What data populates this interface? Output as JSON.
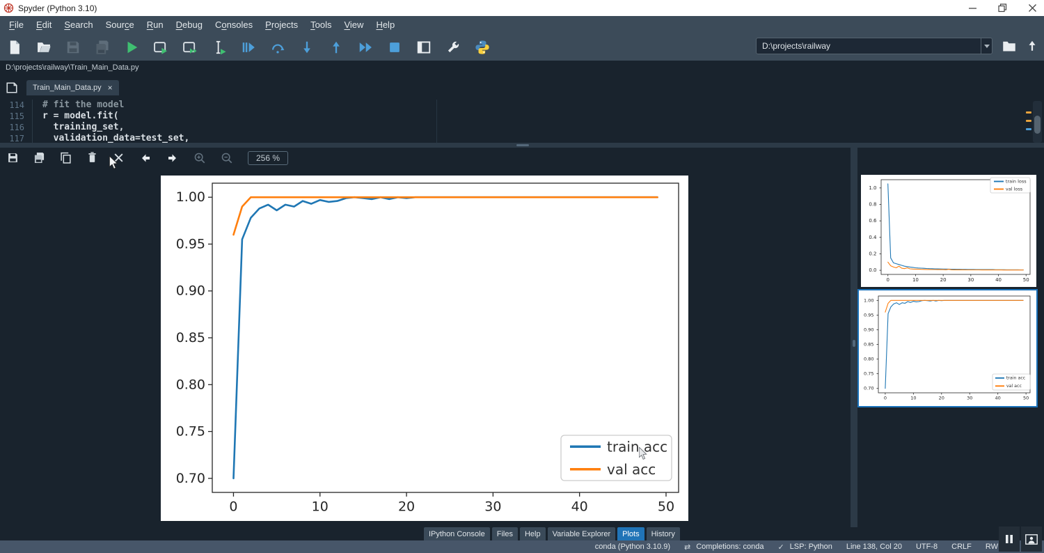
{
  "window": {
    "title": "Spyder (Python 3.10)"
  },
  "menubar": {
    "items": [
      {
        "label": "File",
        "u": 0
      },
      {
        "label": "Edit",
        "u": 0
      },
      {
        "label": "Search",
        "u": 0
      },
      {
        "label": "Source",
        "u": 4
      },
      {
        "label": "Run",
        "u": 0
      },
      {
        "label": "Debug",
        "u": 0
      },
      {
        "label": "Consoles",
        "u": 1
      },
      {
        "label": "Projects",
        "u": 0
      },
      {
        "label": "Tools",
        "u": 0
      },
      {
        "label": "View",
        "u": 0
      },
      {
        "label": "Help",
        "u": 0
      }
    ]
  },
  "toolbar": {
    "workdir": "D:\\projects\\railway"
  },
  "pathbar": {
    "path": "D:\\projects\\railway\\Train_Main_Data.py"
  },
  "editor": {
    "tab": {
      "label": "Train_Main_Data.py",
      "close": "×"
    },
    "lines": [
      {
        "num": "114",
        "code": "# fit the model"
      },
      {
        "num": "115",
        "code": "r = model.fit("
      },
      {
        "num": "116",
        "code": "  training_set,"
      },
      {
        "num": "117",
        "code": "  validation_data=test_set,"
      }
    ]
  },
  "plots_toolbar": {
    "zoom_level": "256 %"
  },
  "colors": {
    "accent": "#1a72bb",
    "train": "#1f77b4",
    "val": "#ff7f0e"
  },
  "chart_data": [
    {
      "type": "line",
      "title": "",
      "xlabel": "",
      "ylabel": "",
      "xlim": [
        -2.45,
        51.45
      ],
      "ylim": [
        0.685,
        1.015
      ],
      "xticks": [
        {
          "v": 0,
          "label": "0"
        },
        {
          "v": 10,
          "label": "10"
        },
        {
          "v": 20,
          "label": "20"
        },
        {
          "v": 30,
          "label": "30"
        },
        {
          "v": 40,
          "label": "40"
        },
        {
          "v": 50,
          "label": "50"
        }
      ],
      "yticks": [
        {
          "v": 0.7,
          "label": "0.70"
        },
        {
          "v": 0.75,
          "label": "0.75"
        },
        {
          "v": 0.8,
          "label": "0.80"
        },
        {
          "v": 0.85,
          "label": "0.85"
        },
        {
          "v": 0.9,
          "label": "0.90"
        },
        {
          "v": 0.95,
          "label": "0.95"
        },
        {
          "v": 1.0,
          "label": "1.00"
        }
      ],
      "legend": {
        "position": "bottom-right"
      },
      "series": [
        {
          "name": "train acc",
          "color": "#1f77b4",
          "values": [
            0.7,
            0.955,
            0.978,
            0.988,
            0.992,
            0.986,
            0.992,
            0.99,
            0.996,
            0.993,
            0.997,
            0.995,
            0.996,
            0.999,
            1.0,
            0.999,
            0.998,
            1.0,
            0.998,
            1.0,
            0.999,
            1.0,
            1.0,
            1.0,
            1.0,
            1.0,
            1.0,
            1.0,
            1.0,
            1.0,
            1.0,
            1.0,
            1.0,
            1.0,
            1.0,
            1.0,
            1.0,
            1.0,
            1.0,
            1.0,
            1.0,
            1.0,
            1.0,
            1.0,
            1.0,
            1.0,
            1.0,
            1.0,
            1.0,
            1.0
          ]
        },
        {
          "name": "val acc",
          "color": "#ff7f0e",
          "values": [
            0.96,
            0.99,
            1.0,
            1.0,
            1.0,
            1.0,
            1.0,
            1.0,
            1.0,
            1.0,
            1.0,
            1.0,
            1.0,
            1.0,
            1.0,
            1.0,
            1.0,
            1.0,
            1.0,
            1.0,
            1.0,
            1.0,
            1.0,
            1.0,
            1.0,
            1.0,
            1.0,
            1.0,
            1.0,
            1.0,
            1.0,
            1.0,
            1.0,
            1.0,
            1.0,
            1.0,
            1.0,
            1.0,
            1.0,
            1.0,
            1.0,
            1.0,
            1.0,
            1.0,
            1.0,
            1.0,
            1.0,
            1.0,
            1.0,
            1.0
          ]
        }
      ]
    },
    {
      "type": "line",
      "title": "",
      "xlabel": "",
      "ylabel": "",
      "xlim": [
        -2.45,
        51.45
      ],
      "ylim": [
        -0.05,
        1.1
      ],
      "xticks": [
        {
          "v": 0,
          "label": "0"
        },
        {
          "v": 10,
          "label": "10"
        },
        {
          "v": 20,
          "label": "20"
        },
        {
          "v": 30,
          "label": "30"
        },
        {
          "v": 40,
          "label": "40"
        },
        {
          "v": 50,
          "label": "50"
        }
      ],
      "yticks": [
        {
          "v": 0.0,
          "label": "0.0"
        },
        {
          "v": 0.2,
          "label": "0.2"
        },
        {
          "v": 0.4,
          "label": "0.4"
        },
        {
          "v": 0.6,
          "label": "0.6"
        },
        {
          "v": 0.8,
          "label": "0.8"
        },
        {
          "v": 1.0,
          "label": "1.0"
        }
      ],
      "legend": {
        "position": "top-right"
      },
      "series": [
        {
          "name": "train loss",
          "color": "#1f77b4",
          "values": [
            1.05,
            0.15,
            0.09,
            0.08,
            0.07,
            0.06,
            0.05,
            0.045,
            0.04,
            0.035,
            0.03,
            0.028,
            0.026,
            0.024,
            0.022,
            0.02,
            0.019,
            0.018,
            0.017,
            0.016,
            0.015,
            0.015,
            0.014,
            0.013,
            0.013,
            0.012,
            0.012,
            0.011,
            0.011,
            0.01,
            0.01,
            0.01,
            0.009,
            0.009,
            0.009,
            0.008,
            0.008,
            0.008,
            0.008,
            0.007,
            0.007,
            0.007,
            0.007,
            0.006,
            0.006,
            0.006,
            0.006,
            0.006,
            0.005,
            0.005
          ]
        },
        {
          "name": "val loss",
          "color": "#ff7f0e",
          "values": [
            0.1,
            0.055,
            0.04,
            0.03,
            0.05,
            0.025,
            0.02,
            0.03,
            0.018,
            0.015,
            0.014,
            0.013,
            0.012,
            0.011,
            0.01,
            0.01,
            0.009,
            0.009,
            0.008,
            0.008,
            0.008,
            0.007,
            0.012,
            0.007,
            0.006,
            0.006,
            0.006,
            0.006,
            0.005,
            0.005,
            0.005,
            0.005,
            0.005,
            0.005,
            0.004,
            0.004,
            0.004,
            0.004,
            0.004,
            0.004,
            0.004,
            0.004,
            0.003,
            0.003,
            0.003,
            0.003,
            0.003,
            0.003,
            0.003,
            0.003
          ]
        }
      ]
    },
    {
      "type": "line",
      "title": "",
      "xlabel": "",
      "ylabel": "",
      "xlim": [
        -2.45,
        51.45
      ],
      "ylim": [
        0.685,
        1.015
      ],
      "xticks": [
        {
          "v": 0,
          "label": "0"
        },
        {
          "v": 10,
          "label": "10"
        },
        {
          "v": 20,
          "label": "20"
        },
        {
          "v": 30,
          "label": "30"
        },
        {
          "v": 40,
          "label": "40"
        },
        {
          "v": 50,
          "label": "50"
        }
      ],
      "yticks": [
        {
          "v": 0.7,
          "label": "0.70"
        },
        {
          "v": 0.75,
          "label": "0.75"
        },
        {
          "v": 0.8,
          "label": "0.80"
        },
        {
          "v": 0.85,
          "label": "0.85"
        },
        {
          "v": 0.9,
          "label": "0.90"
        },
        {
          "v": 0.95,
          "label": "0.95"
        },
        {
          "v": 1.0,
          "label": "1.00"
        }
      ],
      "legend": {
        "position": "bottom-right"
      },
      "series": [
        {
          "name": "train acc",
          "color": "#1f77b4",
          "values": [
            0.7,
            0.955,
            0.978,
            0.988,
            0.992,
            0.986,
            0.992,
            0.99,
            0.996,
            0.993,
            0.997,
            0.995,
            0.996,
            0.999,
            1.0,
            0.999,
            0.998,
            1.0,
            0.998,
            1.0,
            0.999,
            1.0,
            1.0,
            1.0,
            1.0,
            1.0,
            1.0,
            1.0,
            1.0,
            1.0,
            1.0,
            1.0,
            1.0,
            1.0,
            1.0,
            1.0,
            1.0,
            1.0,
            1.0,
            1.0,
            1.0,
            1.0,
            1.0,
            1.0,
            1.0,
            1.0,
            1.0,
            1.0,
            1.0,
            1.0
          ]
        },
        {
          "name": "val acc",
          "color": "#ff7f0e",
          "values": [
            0.96,
            0.99,
            1.0,
            1.0,
            1.0,
            1.0,
            1.0,
            1.0,
            1.0,
            1.0,
            1.0,
            1.0,
            1.0,
            1.0,
            1.0,
            1.0,
            1.0,
            1.0,
            1.0,
            1.0,
            1.0,
            1.0,
            1.0,
            1.0,
            1.0,
            1.0,
            1.0,
            1.0,
            1.0,
            1.0,
            1.0,
            1.0,
            1.0,
            1.0,
            1.0,
            1.0,
            1.0,
            1.0,
            1.0,
            1.0,
            1.0,
            1.0,
            1.0,
            1.0,
            1.0,
            1.0,
            1.0,
            1.0,
            1.0,
            1.0
          ]
        }
      ]
    }
  ],
  "bottom_tabs": {
    "items": [
      "IPython Console",
      "Files",
      "Help",
      "Variable Explorer",
      "Plots",
      "History"
    ],
    "active": "Plots"
  },
  "statusbar": {
    "completions_icon": "⇄",
    "lsp_icon": "✓",
    "items": [
      "conda (Python 3.10.9)",
      "Completions: conda",
      "LSP: Python",
      "Line 138, Col 20",
      "UTF-8",
      "CRLF",
      "RW"
    ]
  }
}
